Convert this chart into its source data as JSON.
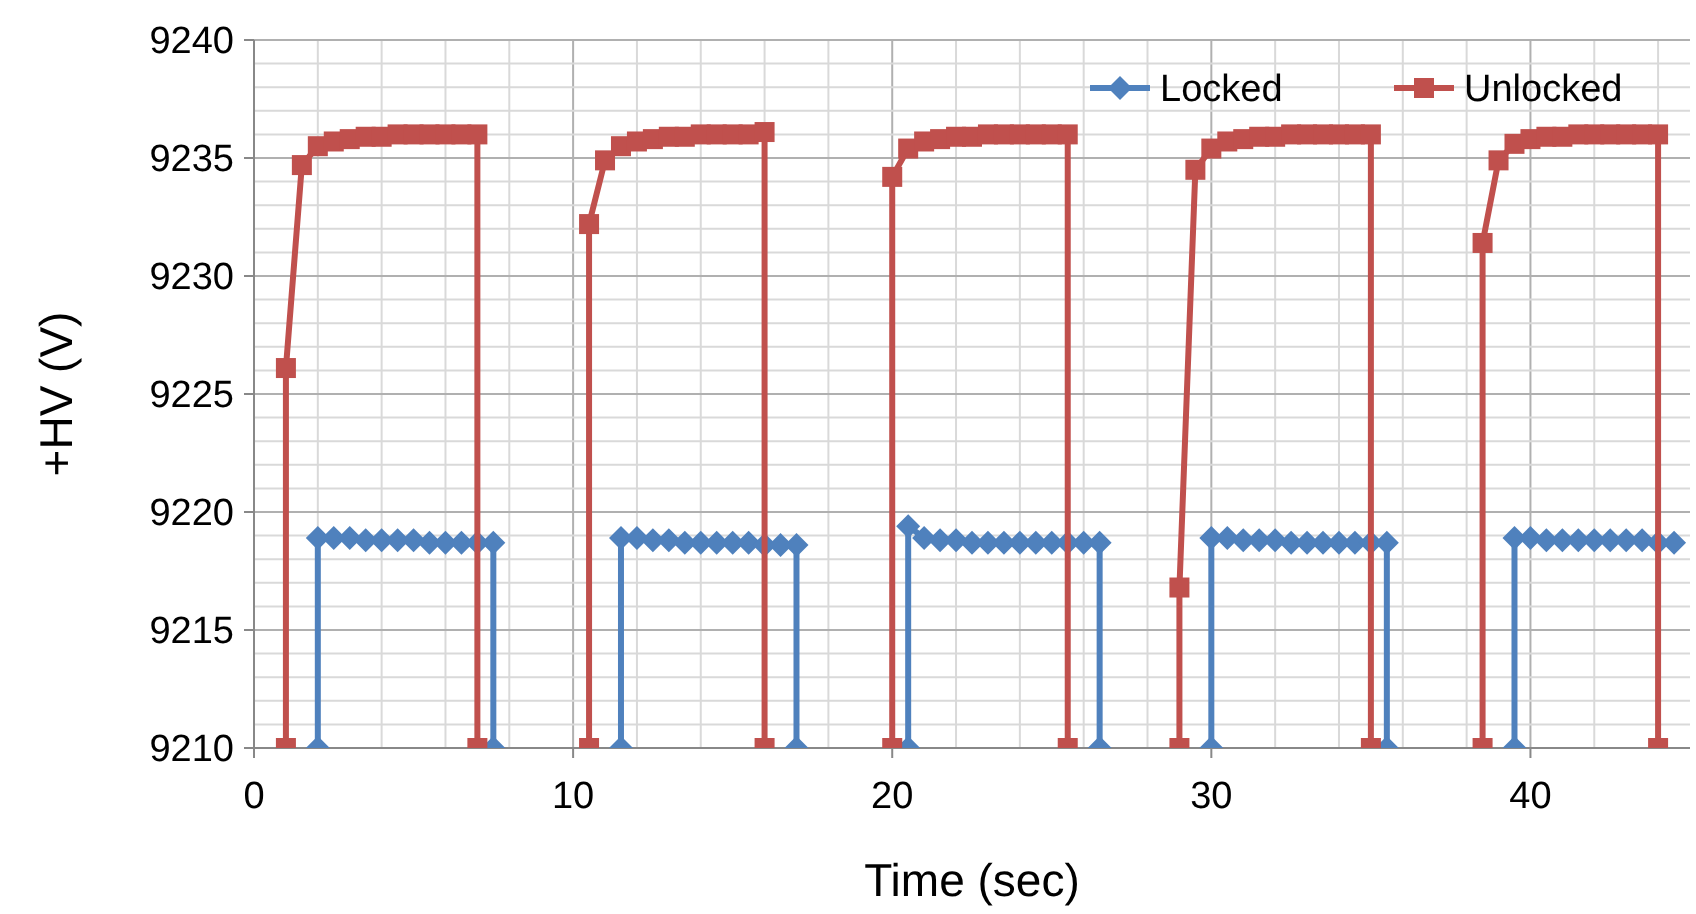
{
  "chart_data": {
    "type": "line",
    "xlabel": "Time (sec)",
    "ylabel": "+HV (V)",
    "xlim": [
      0,
      45
    ],
    "ylim": [
      9210,
      9240
    ],
    "xticks": [
      0,
      {
        "value": 2,
        "label": null
      },
      {
        "value": 4,
        "label": null
      },
      {
        "value": 6,
        "label": null
      },
      {
        "value": 8,
        "label": null
      },
      10,
      {
        "value": 12,
        "label": null
      },
      {
        "value": 14,
        "label": null
      },
      {
        "value": 16,
        "label": null
      },
      {
        "value": 18,
        "label": null
      },
      20,
      {
        "value": 22,
        "label": null
      },
      {
        "value": 24,
        "label": null
      },
      {
        "value": 26,
        "label": null
      },
      {
        "value": 28,
        "label": null
      },
      30,
      {
        "value": 32,
        "label": null
      },
      {
        "value": 34,
        "label": null
      },
      {
        "value": 36,
        "label": null
      },
      {
        "value": 38,
        "label": null
      },
      40,
      {
        "value": 42,
        "label": null
      },
      {
        "value": 44,
        "label": null
      }
    ],
    "yticks": [
      9210,
      {
        "value": 9211,
        "label": null
      },
      {
        "value": 9212,
        "label": null
      },
      {
        "value": 9213,
        "label": null
      },
      {
        "value": 9214,
        "label": null
      },
      9215,
      {
        "value": 9216,
        "label": null
      },
      {
        "value": 9217,
        "label": null
      },
      {
        "value": 9218,
        "label": null
      },
      {
        "value": 9219,
        "label": null
      },
      9220,
      {
        "value": 9221,
        "label": null
      },
      {
        "value": 9222,
        "label": null
      },
      {
        "value": 9223,
        "label": null
      },
      {
        "value": 9224,
        "label": null
      },
      9225,
      {
        "value": 9226,
        "label": null
      },
      {
        "value": 9227,
        "label": null
      },
      {
        "value": 9228,
        "label": null
      },
      {
        "value": 9229,
        "label": null
      },
      9230,
      {
        "value": 9231,
        "label": null
      },
      {
        "value": 9232,
        "label": null
      },
      {
        "value": 9233,
        "label": null
      },
      {
        "value": 9234,
        "label": null
      },
      9235,
      {
        "value": 9236,
        "label": null
      },
      {
        "value": 9237,
        "label": null
      },
      {
        "value": 9238,
        "label": null
      },
      {
        "value": 9239,
        "label": null
      },
      9240
    ],
    "grid": true,
    "legend": "top right",
    "line_style": "solid",
    "series": [
      {
        "name": "Locked",
        "color": "#4f81bd",
        "marker": "diamond",
        "x": [
          2,
          2,
          2.5,
          3,
          3.5,
          4,
          4.5,
          5,
          5.5,
          6,
          6.5,
          7,
          7.5,
          7.5,
          9,
          11.5,
          11.5,
          12,
          12.5,
          13,
          13.5,
          14,
          14.5,
          15,
          15.5,
          16,
          16.5,
          17,
          17,
          19,
          20.5,
          20.5,
          21,
          21.5,
          22,
          22.5,
          23,
          23.5,
          24,
          24.5,
          25,
          25.5,
          26,
          26.5,
          26.5,
          28,
          30,
          30,
          30.5,
          31,
          31.5,
          32,
          32.5,
          33,
          33.5,
          34,
          34.5,
          35,
          35.5,
          35.5,
          37.5,
          39.5,
          39.5,
          40,
          40.5,
          41,
          41.5,
          42,
          42.5,
          43,
          43.5,
          44,
          44.5
        ],
        "values": [
          9210,
          9218.9,
          9218.9,
          9218.9,
          9218.8,
          9218.8,
          9218.8,
          9218.8,
          9218.7,
          9218.7,
          9218.7,
          9218.7,
          9218.7,
          9210,
          null,
          9210,
          9218.9,
          9218.9,
          9218.8,
          9218.8,
          9218.7,
          9218.7,
          9218.7,
          9218.7,
          9218.7,
          9218.6,
          9218.6,
          9218.6,
          9210,
          null,
          9210,
          9219.4,
          9218.9,
          9218.8,
          9218.8,
          9218.7,
          9218.7,
          9218.7,
          9218.7,
          9218.7,
          9218.7,
          9218.7,
          9218.7,
          9218.7,
          9210,
          null,
          9210,
          9218.9,
          9218.9,
          9218.8,
          9218.8,
          9218.8,
          9218.7,
          9218.7,
          9218.7,
          9218.7,
          9218.7,
          9218.7,
          9218.7,
          9210,
          null,
          9210,
          9218.9,
          9218.9,
          9218.8,
          9218.8,
          9218.8,
          9218.8,
          9218.8,
          9218.8,
          9218.8,
          9218.7,
          9218.7
        ]
      },
      {
        "name": "Unlocked",
        "color": "#c0504d",
        "marker": "square",
        "x": [
          1,
          1,
          1.5,
          2,
          2.5,
          3,
          3.5,
          4,
          4.5,
          5,
          5.5,
          6,
          6.5,
          7,
          7,
          8.75,
          10.5,
          10.5,
          11,
          11.5,
          12,
          12.5,
          13,
          13.5,
          14,
          14.5,
          15,
          15.5,
          16,
          16,
          18,
          20,
          20,
          20.5,
          21,
          21.5,
          22,
          22.5,
          23,
          23.5,
          24,
          24.5,
          25,
          25.5,
          25.5,
          27,
          29,
          29,
          29.5,
          30,
          30.5,
          31,
          31.5,
          32,
          32.5,
          33,
          33.5,
          34,
          34.5,
          35,
          35,
          37,
          38.5,
          38.5,
          39,
          39.5,
          40,
          40.5,
          41,
          41.5,
          42,
          42.5,
          43,
          43.5,
          44,
          44
        ],
        "values": [
          9210,
          9226.1,
          9234.7,
          9235.5,
          9235.7,
          9235.8,
          9235.9,
          9235.9,
          9236,
          9236,
          9236,
          9236,
          9236,
          9236,
          9210,
          null,
          9210,
          9232.2,
          9234.9,
          9235.5,
          9235.7,
          9235.8,
          9235.9,
          9235.9,
          9236,
          9236,
          9236,
          9236,
          9236.1,
          9210,
          null,
          9210,
          9234.2,
          9235.4,
          9235.7,
          9235.8,
          9235.9,
          9235.9,
          9236,
          9236,
          9236,
          9236,
          9236,
          9236,
          9210,
          null,
          9210,
          9216.8,
          9234.5,
          9235.4,
          9235.7,
          9235.8,
          9235.9,
          9235.9,
          9236,
          9236,
          9236,
          9236,
          9236,
          9236,
          9210,
          null,
          9210,
          9231.4,
          9234.9,
          9235.6,
          9235.8,
          9235.9,
          9235.9,
          9236,
          9236,
          9236,
          9236,
          9236,
          9236,
          9210
        ]
      }
    ]
  }
}
